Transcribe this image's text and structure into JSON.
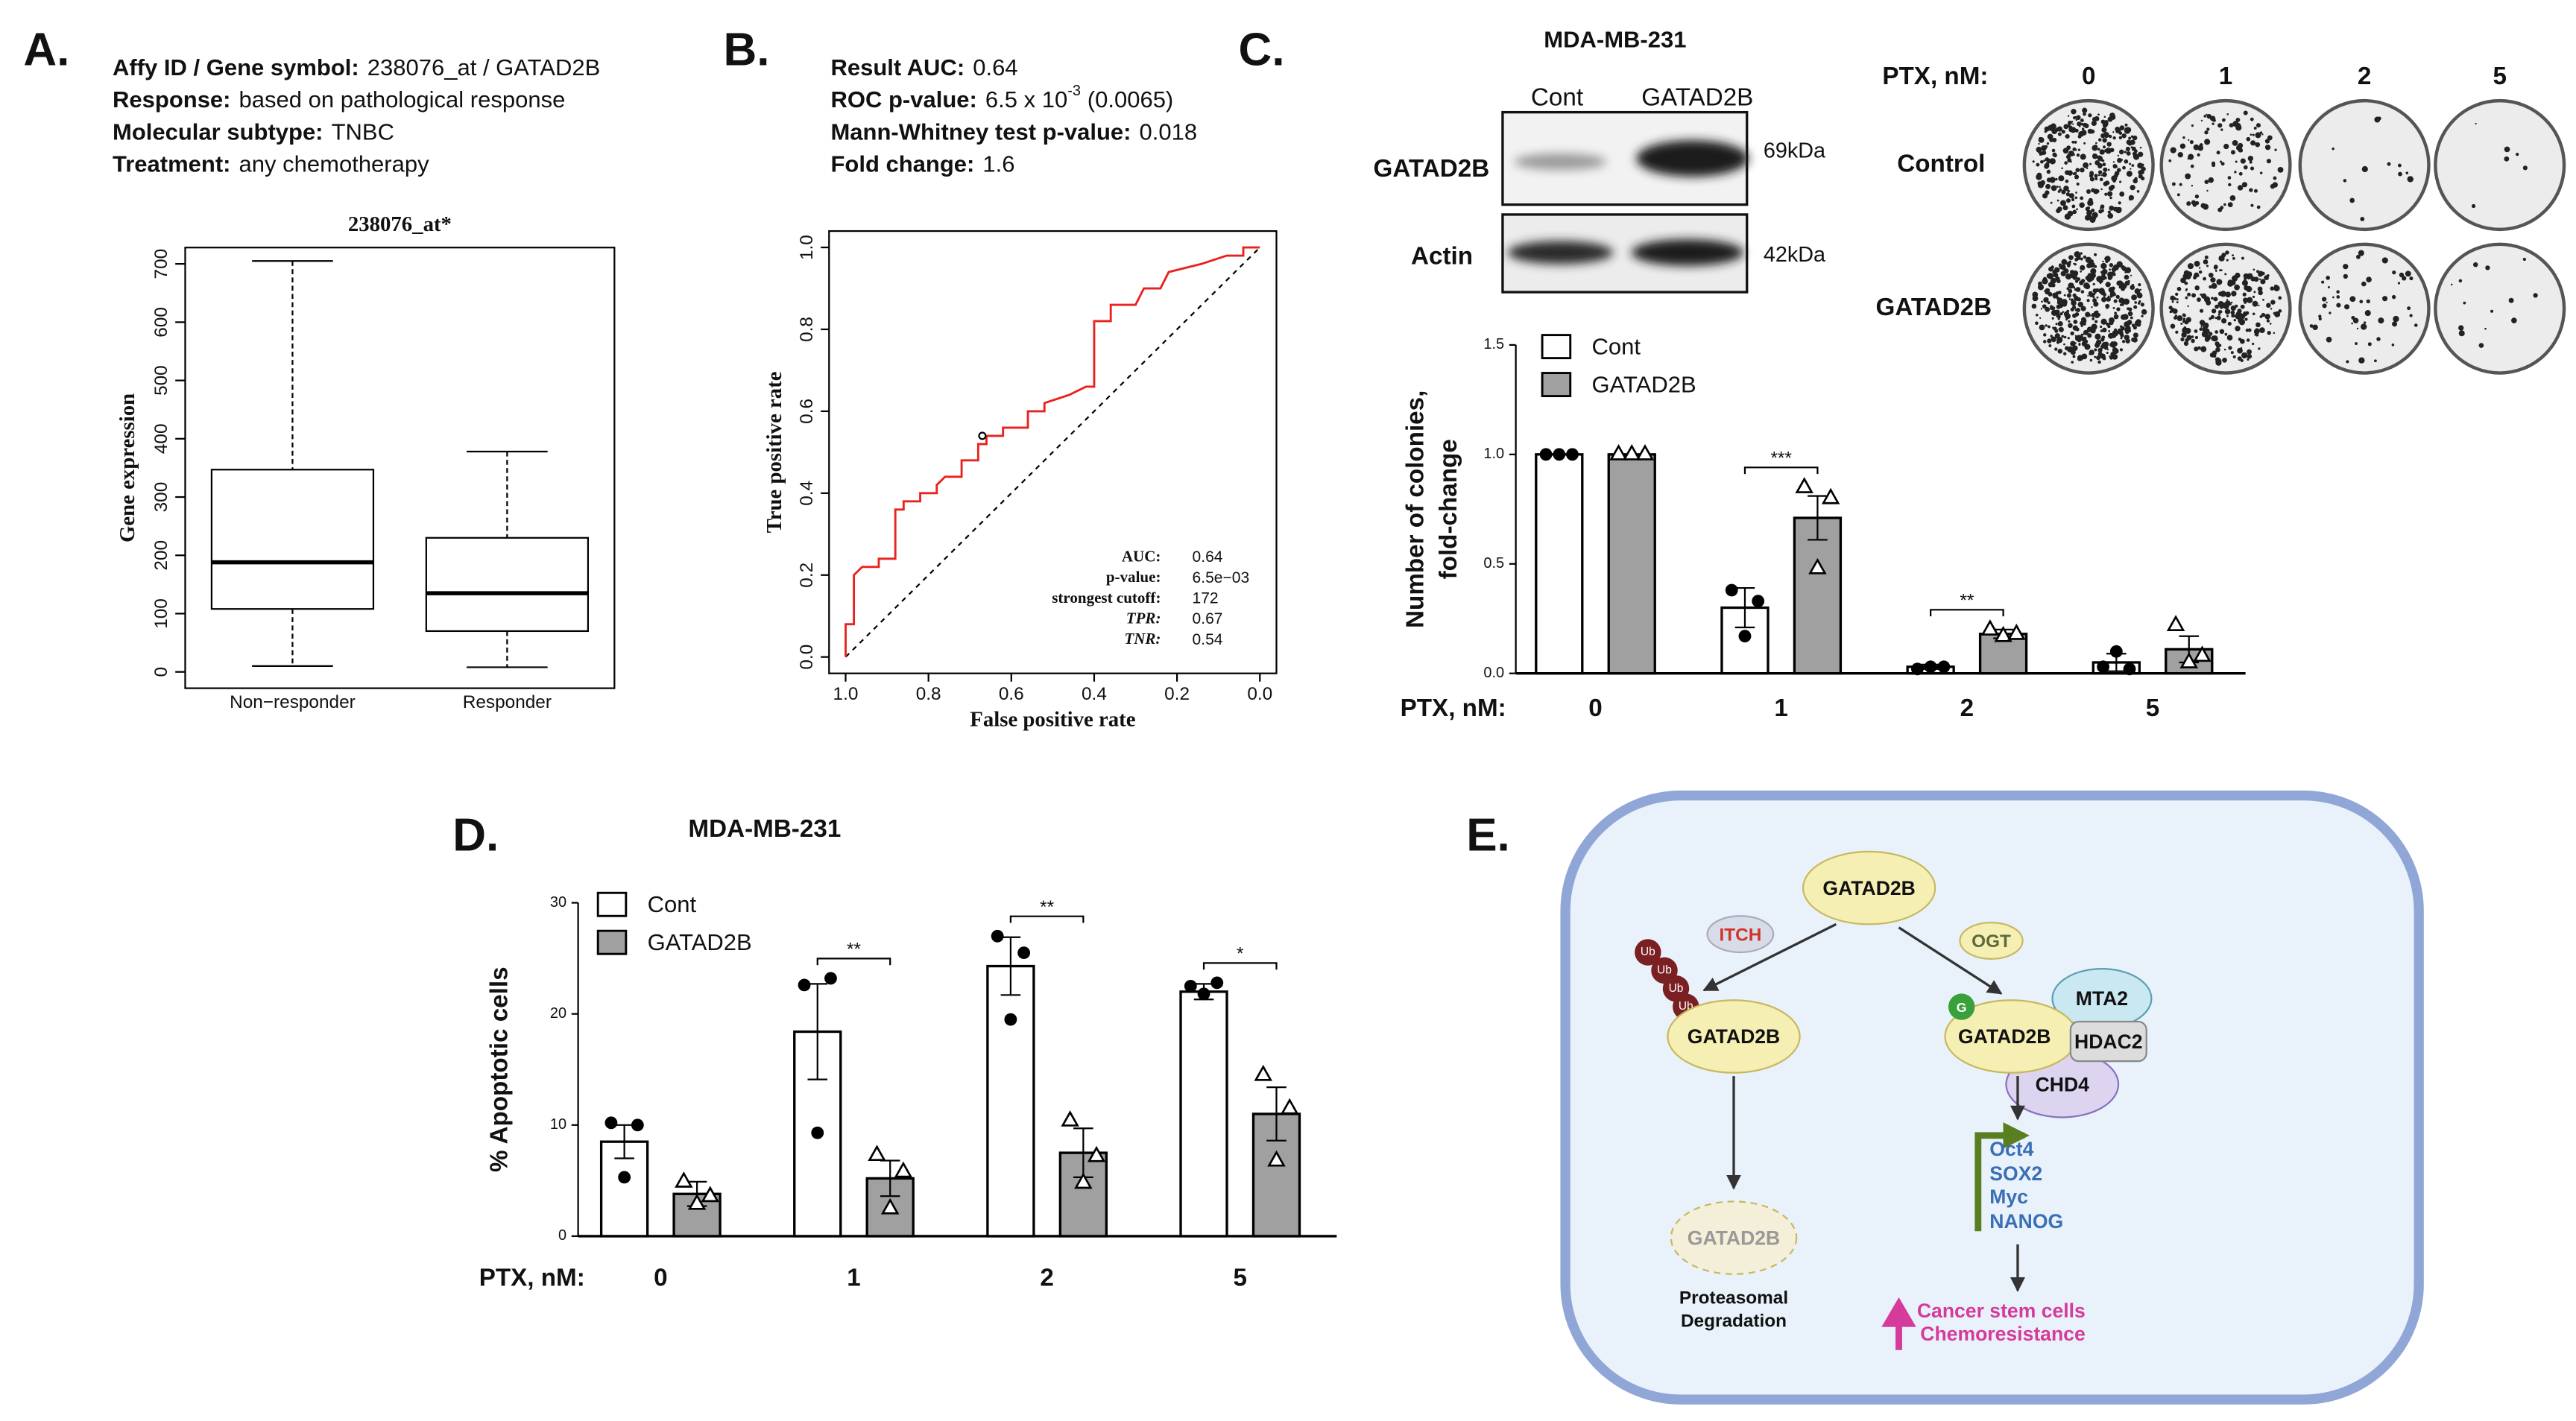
{
  "panels": [
    "A.",
    "B.",
    "C.",
    "D.",
    "E."
  ],
  "chart_data": [
    {
      "type": "box",
      "info": [
        {
          "label": "Affy ID / Gene symbol:",
          "value": "238076_at / GATAD2B"
        },
        {
          "label": "Response:",
          "value": "based on pathological response"
        },
        {
          "label": "Molecular subtype:",
          "value": "TNBC"
        },
        {
          "label": "Treatment:",
          "value": "any chemotherapy"
        }
      ],
      "title": "238076_at*",
      "ylabel": "Gene expression",
      "categories": [
        "Non−responder",
        "Responder"
      ],
      "boxes": [
        {
          "min": 10,
          "q1": 108,
          "median": 188,
          "q3": 347,
          "max": 705
        },
        {
          "min": 8,
          "q1": 70,
          "median": 135,
          "q3": 230,
          "max": 378
        }
      ],
      "ylim": [
        -28,
        728
      ],
      "yticks": [
        0,
        100,
        200,
        300,
        400,
        500,
        600,
        700
      ]
    },
    {
      "type": "line",
      "info": [
        {
          "label": "Result AUC:",
          "value": "0.64"
        },
        {
          "label": "ROC p-value:",
          "value": "6.5 x 10",
          "sup": "-3",
          "rest": "(0.0065)"
        },
        {
          "label": "Mann-Whitney test p-value:",
          "value": "0.018"
        },
        {
          "label": "Fold change:",
          "value": "1.6"
        }
      ],
      "xlabel": "False positive rate",
      "ylabel": "True positive rate",
      "x": [
        1.0,
        1.0,
        0.98,
        0.98,
        0.96,
        0.92,
        0.92,
        0.88,
        0.88,
        0.86,
        0.86,
        0.82,
        0.82,
        0.78,
        0.78,
        0.76,
        0.72,
        0.72,
        0.68,
        0.68,
        0.66,
        0.66,
        0.62,
        0.62,
        0.56,
        0.56,
        0.52,
        0.52,
        0.46,
        0.42,
        0.4,
        0.4,
        0.36,
        0.36,
        0.3,
        0.28,
        0.24,
        0.22,
        0.14,
        0.08,
        0.04,
        0.04,
        0.0
      ],
      "series": [
        {
          "color": "#e8231f",
          "values": [
            0.0,
            0.08,
            0.08,
            0.2,
            0.22,
            0.22,
            0.24,
            0.24,
            0.36,
            0.36,
            0.38,
            0.38,
            0.4,
            0.4,
            0.42,
            0.44,
            0.44,
            0.48,
            0.48,
            0.52,
            0.52,
            0.54,
            0.54,
            0.56,
            0.56,
            0.6,
            0.6,
            0.62,
            0.64,
            0.66,
            0.66,
            0.82,
            0.82,
            0.86,
            0.86,
            0.9,
            0.9,
            0.94,
            0.96,
            0.98,
            0.98,
            1.0,
            1.0
          ]
        }
      ],
      "cutoff": {
        "x": 0.67,
        "y": 0.54
      },
      "legend_rows": [
        {
          "label": "AUC:",
          "value": "0.64"
        },
        {
          "label": "p-value:",
          "value": "6.5e−03"
        },
        {
          "label": "strongest cutoff:",
          "value": "172"
        },
        {
          "label": "TPR:",
          "value": "0.67"
        },
        {
          "label": "TNR:",
          "value": "0.54"
        }
      ],
      "xlim": [
        1.04,
        -0.04
      ],
      "ylim": [
        -0.04,
        1.04
      ],
      "xticks": [
        {
          "value": 1,
          "label": "1.0"
        },
        0.8,
        0.6,
        0.4,
        0.2,
        {
          "value": 0,
          "label": "0.0"
        }
      ],
      "yticks": [
        {
          "value": 0,
          "label": "0.0"
        },
        0.2,
        0.4,
        0.6,
        0.8,
        {
          "value": 1,
          "label": "1.0"
        }
      ]
    },
    {
      "type": "bar",
      "ylabel": [
        "Number of colonies,",
        "fold-change"
      ],
      "xlabel": "PTX, nM:",
      "categories": [
        "0",
        "1",
        "2",
        "5"
      ],
      "series": [
        {
          "name": "Cont",
          "color": "#ffffff",
          "values": [
            1.0,
            0.3,
            0.03,
            0.05
          ],
          "errors": [
            0,
            0.09,
            0.01,
            0.04
          ],
          "points": [
            [
              1,
              1,
              1
            ],
            [
              0.38,
              0.17,
              0.33
            ],
            [
              0.02,
              0.03,
              0.03
            ],
            [
              0.03,
              0.1,
              0.02
            ]
          ]
        },
        {
          "name": "GATAD2B",
          "color": "#a0a0a0",
          "values": [
            1.0,
            0.71,
            0.18,
            0.11
          ],
          "errors": [
            0,
            0.1,
            0.02,
            0.06
          ],
          "points": [
            [
              1,
              1,
              1
            ],
            [
              0.85,
              0.48,
              0.8
            ],
            [
              0.2,
              0.17,
              0.18
            ],
            [
              0.22,
              0.05,
              0.08
            ]
          ]
        }
      ],
      "significance": [
        null,
        "***",
        "**",
        null
      ],
      "ylim": [
        0,
        1.5
      ],
      "yticks": [
        {
          "value": 0,
          "label": "0.0"
        },
        0.5,
        {
          "value": 1,
          "label": "1.0"
        },
        1.5
      ]
    },
    {
      "type": "bar",
      "title": "MDA-MB-231",
      "ylabel": [
        "% Apoptotic cells"
      ],
      "xlabel": "PTX, nM:",
      "categories": [
        "0",
        "1",
        "2",
        "5"
      ],
      "series": [
        {
          "name": "Cont",
          "color": "#ffffff",
          "values": [
            8.5,
            18.4,
            24.3,
            22.0
          ],
          "errors": [
            1.5,
            4.3,
            2.6,
            0.7
          ],
          "points": [
            [
              10.2,
              5.3,
              10.0
            ],
            [
              22.6,
              9.3,
              23.2
            ],
            [
              27,
              19.5,
              25.5
            ],
            [
              22.5,
              21.8,
              22.8
            ]
          ]
        },
        {
          "name": "GATAD2B",
          "color": "#a0a0a0",
          "values": [
            3.8,
            5.2,
            7.5,
            11.0
          ],
          "errors": [
            1.1,
            1.6,
            2.2,
            2.4
          ],
          "points": [
            [
              4.9,
              2.9,
              3.6
            ],
            [
              7.3,
              2.5,
              5.8
            ],
            [
              10.4,
              4.8,
              7.2
            ],
            [
              14.5,
              6.8,
              11.5
            ]
          ]
        }
      ],
      "significance": [
        "**",
        "**",
        "*"
      ],
      "significance_categories": [
        "1",
        "2",
        "5"
      ],
      "ylim": [
        0,
        30
      ],
      "yticks": [
        0,
        10,
        20,
        30
      ]
    }
  ],
  "blot": {
    "cell_line": "MDA-MB-231",
    "lanes": [
      "Cont",
      "GATAD2B"
    ],
    "rows": [
      "GATAD2B",
      "Actin"
    ],
    "sizes": [
      "69kDa",
      "42kDa"
    ]
  },
  "colony": {
    "axis_label": "PTX, nM:",
    "doses": [
      "0",
      "1",
      "2",
      "5"
    ],
    "rows": [
      "Control",
      "GATAD2B"
    ]
  },
  "diagram": {
    "top": "GATAD2B",
    "itch": "ITCH",
    "ogt": "OGT",
    "ub": [
      "Ub",
      "Ub",
      "Ub",
      "Ub"
    ],
    "left": "GATAD2B",
    "g": "G",
    "right": "GATAD2B",
    "mta2": "MTA2",
    "hdac2": "HDAC2",
    "chd4": "CHD4",
    "genes": [
      "Oct4",
      "SOX2",
      "Myc",
      "NANOG"
    ],
    "degraded": "GATAD2B",
    "degradation": [
      "Proteasomal",
      "Degradation"
    ],
    "outcome": [
      "Cancer stem cells",
      "Chemoresistance"
    ]
  }
}
